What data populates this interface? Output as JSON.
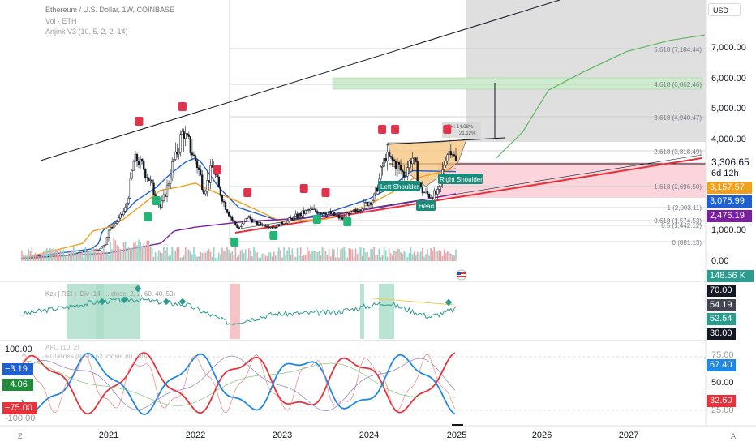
{
  "header": {
    "symbol_line": "Ethereum / U.S. Dollar, 1W, COINBASE",
    "vol_line": "Vol · ETH",
    "indicator_line": "Anjink V3 (10, 5, 2, 2, 14)",
    "currency_button": "USD"
  },
  "colors": {
    "candle": "#131722",
    "ema_fast": "#1e5fd1",
    "ema_mid": "#f29f1c",
    "ema_slow": "#7b1fa2",
    "trend_red": "#e8313b",
    "projection": "#5cb85c",
    "zone_pink": "#f9c7cf",
    "zone_green": "#cdebcd",
    "sell_marker": "#e0344c",
    "buy_marker": "#22b573"
  },
  "price_scale": {
    "ticks": [
      "7,000.00",
      "6,000.00",
      "5,000.00",
      "4,000.00",
      "1,000.00",
      "0.00"
    ],
    "current_price": "3,306.65",
    "countdown": "6d 12h"
  },
  "price_tags": [
    {
      "value": "3,157.57",
      "color": "#f29f1c"
    },
    {
      "value": "3,075.99",
      "color": "#1e5fd1"
    },
    {
      "value": "2,476.19",
      "color": "#7b1fa2"
    },
    {
      "value": "148.56 K",
      "color": "#2a9d8f"
    }
  ],
  "fib_levels": [
    "5.618 (7,184.44)",
    "4.618 (6,062.46)",
    "3.618 (4,940.47)",
    "2.618 (3,818.49)",
    "1.618 (2,696.50)",
    "1 (2,003.11)",
    "0.618 (1,574.53)",
    "0.5 (1,442.12)",
    "0 (881.13)"
  ],
  "annotations": {
    "left_shoulder": "Left Shoulder",
    "head": "Head",
    "right_shoulder": "Right Shoulder",
    "ath_line1": "ATH: 14.08%",
    "ath_line2": "21.12%"
  },
  "rsi_panel": {
    "legend": "Kzx | RSI + Div (14, ... close, 2, 2, 60, 40, 50)",
    "tags": [
      {
        "value": "70.00",
        "color": "#131722"
      },
      {
        "value": "54.19",
        "color": "#434651"
      },
      {
        "value": "52.54",
        "color": "#2a9d8f"
      },
      {
        "value": "30.00",
        "color": "#131722"
      }
    ]
  },
  "osc_panel": {
    "legend_line1": "AFO (10, 2)",
    "legend_line2": "RCI3lines (9, 26, 52, close, 80, -80)",
    "left_scale": [
      "100.00",
      "-100.00"
    ],
    "left_tags": [
      {
        "value": "−3.19",
        "color": "#1e5fd1"
      },
      {
        "value": "−4.06",
        "color": "#1e8c3a"
      },
      {
        "value": "−75.00",
        "color": "#e8313b"
      }
    ],
    "right_ticks": [
      "75.00",
      "50.00",
      "25.00"
    ],
    "right_tags": [
      {
        "value": "67.40",
        "color": "#1e88e5"
      },
      {
        "value": "32.60",
        "color": "#e8313b"
      }
    ]
  },
  "time_axis": [
    "2021",
    "2022",
    "2023",
    "2024",
    "2025",
    "2026",
    "2027"
  ],
  "corner": {
    "left": "Z",
    "right": "A"
  },
  "chart_data": {
    "type": "line",
    "title": "Ethereum / U.S. Dollar, 1W, COINBASE",
    "x_unit": "year",
    "ylim": [
      0,
      7500
    ],
    "series": [
      {
        "x": [
          2020.0,
          2020.5,
          2020.9,
          2021.1,
          2021.2,
          2021.3,
          2021.45,
          2021.6,
          2021.75,
          2021.85,
          2021.95,
          2022.1,
          2022.2,
          2022.35,
          2022.5,
          2022.6,
          2022.7,
          2022.9,
          2023.1,
          2023.3,
          2023.5,
          2023.7,
          2023.9,
          2024.05,
          2024.2,
          2024.3,
          2024.4,
          2024.5,
          2024.6,
          2024.7,
          2024.8,
          2024.9,
          2024.95,
          2025.0
        ],
        "y": [
          130,
          300,
          600,
          1500,
          2000,
          3500,
          3000,
          2000,
          3400,
          4300,
          3800,
          2600,
          3200,
          2000,
          1100,
          1700,
          1400,
          1200,
          1600,
          1900,
          1850,
          1600,
          2000,
          2300,
          3600,
          3300,
          3000,
          3500,
          2600,
          2400,
          2500,
          3700,
          3900,
          3306.65
        ]
      },
      {
        "x": [
          2020.0,
          2020.8,
          2021.3,
          2021.7,
          2022.0,
          2022.5,
          2023.0,
          2023.5,
          2024.0,
          2024.5,
          2025.0
        ],
        "y": [
          150,
          600,
          2200,
          3000,
          3500,
          2000,
          1500,
          1800,
          2300,
          3100,
          3075.99
        ]
      },
      {
        "x": [
          2020.0,
          2021.0,
          2021.6,
          2022.0,
          2022.5,
          2023.0,
          2023.5,
          2024.0,
          2024.5,
          2025.0
        ],
        "y": [
          120,
          1200,
          2600,
          2800,
          2200,
          1500,
          1600,
          2100,
          2900,
          3157.57
        ]
      },
      {
        "x": [
          2020.0,
          2021.0,
          2022.0,
          2022.6,
          2023.5,
          2024.5,
          2025.0
        ],
        "y": [
          130,
          400,
          1200,
          1500,
          1700,
          2200,
          2476.19
        ]
      }
    ],
    "projection": {
      "x": [
        2025.0,
        2025.3,
        2025.6,
        2026.0,
        2026.5,
        2027.0,
        2027.4
      ],
      "y": [
        3500,
        4300,
        5600,
        6200,
        6900,
        7500,
        7700
      ]
    }
  }
}
